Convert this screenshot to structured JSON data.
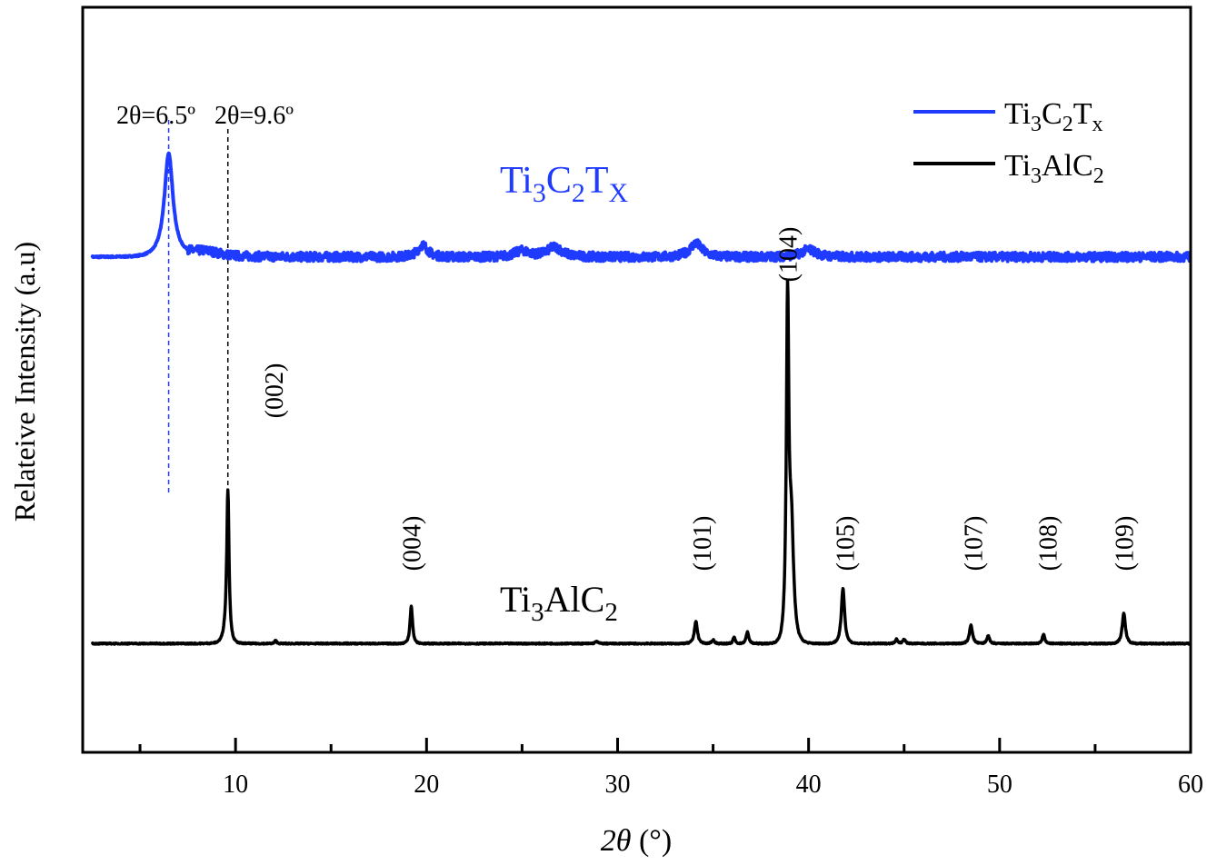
{
  "chart_data": {
    "type": "line",
    "title": "",
    "xlabel": "2θ (°)",
    "xlabel_parts": {
      "var": "2θ",
      "unit": " (°)"
    },
    "ylabel": "Relateive Intensity (a.u)",
    "xlim": [
      2,
      60
    ],
    "ylim": [
      0,
      100
    ],
    "xticks_major": [
      10,
      20,
      30,
      40,
      50,
      60
    ],
    "xticks_minor": [
      5,
      15,
      25,
      35,
      45,
      55
    ],
    "yticks": [],
    "grid": false,
    "legend": {
      "placement": "top-right",
      "entries": [
        {
          "base": "Ti",
          "s1": "3",
          "mid": "C",
          "s2": "2",
          "tail": "T",
          "s3": "x",
          "color": "#1f3bff"
        },
        {
          "base": "Ti",
          "s1": "3",
          "mid": "AlC",
          "s2": "2",
          "tail": "",
          "s3": "",
          "color": "#000000"
        }
      ]
    },
    "series": [
      {
        "name": "Ti3C2Tx",
        "color": "#1f3bff",
        "baseline": 66.5,
        "noise": 0.6,
        "peaks": [
          {
            "x": 6.5,
            "h": 13.7,
            "w": 0.35
          },
          {
            "x": 8.4,
            "h": 0.8,
            "w": 1.2
          },
          {
            "x": 19.8,
            "h": 1.6,
            "w": 0.4
          },
          {
            "x": 25.0,
            "h": 0.8,
            "w": 0.6
          },
          {
            "x": 26.7,
            "h": 1.3,
            "w": 0.6
          },
          {
            "x": 34.1,
            "h": 1.8,
            "w": 0.5
          },
          {
            "x": 40.0,
            "h": 1.0,
            "w": 0.6
          }
        ]
      },
      {
        "name": "Ti3AlC2",
        "color": "#000000",
        "baseline": 14.6,
        "noise": 0.08,
        "peaks": [
          {
            "x": 9.6,
            "h": 19.5,
            "w": 0.09
          },
          {
            "x": 9.5,
            "h": 1.5,
            "w": 0.25
          },
          {
            "x": 12.1,
            "h": 0.4,
            "w": 0.08
          },
          {
            "x": 19.2,
            "h": 5.0,
            "w": 0.1
          },
          {
            "x": 28.9,
            "h": 0.3,
            "w": 0.1
          },
          {
            "x": 34.1,
            "h": 3.0,
            "w": 0.12
          },
          {
            "x": 35.0,
            "h": 0.5,
            "w": 0.1
          },
          {
            "x": 36.1,
            "h": 0.9,
            "w": 0.08
          },
          {
            "x": 36.8,
            "h": 1.6,
            "w": 0.1
          },
          {
            "x": 38.9,
            "h": 44.0,
            "w": 0.1
          },
          {
            "x": 39.1,
            "h": 15.0,
            "w": 0.18
          },
          {
            "x": 41.8,
            "h": 7.4,
            "w": 0.13
          },
          {
            "x": 44.6,
            "h": 0.6,
            "w": 0.1
          },
          {
            "x": 45.0,
            "h": 0.6,
            "w": 0.1
          },
          {
            "x": 48.5,
            "h": 2.5,
            "w": 0.12
          },
          {
            "x": 49.4,
            "h": 1.1,
            "w": 0.1
          },
          {
            "x": 52.3,
            "h": 1.2,
            "w": 0.1
          },
          {
            "x": 56.5,
            "h": 4.0,
            "w": 0.13
          }
        ]
      }
    ],
    "reference_lines": [
      {
        "x": 6.5,
        "label": "2θ=6.5º",
        "color": "#1f3bff",
        "label_parts": {
          "var": "2θ",
          "rest": "=6.5º"
        }
      },
      {
        "x": 9.6,
        "label": "2θ=9.6º",
        "color": "#000000",
        "label_parts": {
          "var": "2θ",
          "rest": "=9.6º"
        }
      }
    ],
    "annotations": {
      "series_labels": [
        {
          "base": "Ti",
          "s1": "3",
          "mid": "C",
          "s2": "2",
          "tail": "T",
          "s3": "X",
          "color": "#1f3bff"
        },
        {
          "base": "Ti",
          "s1": "3",
          "mid": "AlC",
          "s2": "2",
          "tail": "",
          "s3": "",
          "color": "#000000"
        }
      ],
      "planes": [
        {
          "label": "(002)",
          "x": 12.0
        },
        {
          "label": "(004)",
          "x": 19.2
        },
        {
          "label": "(101)",
          "x": 34.4
        },
        {
          "label": "(104)",
          "x": 38.9
        },
        {
          "label": "(105)",
          "x": 41.9
        },
        {
          "label": "(107)",
          "x": 48.6
        },
        {
          "label": "(108)",
          "x": 52.5
        },
        {
          "label": "(109)",
          "x": 56.5
        }
      ]
    }
  }
}
